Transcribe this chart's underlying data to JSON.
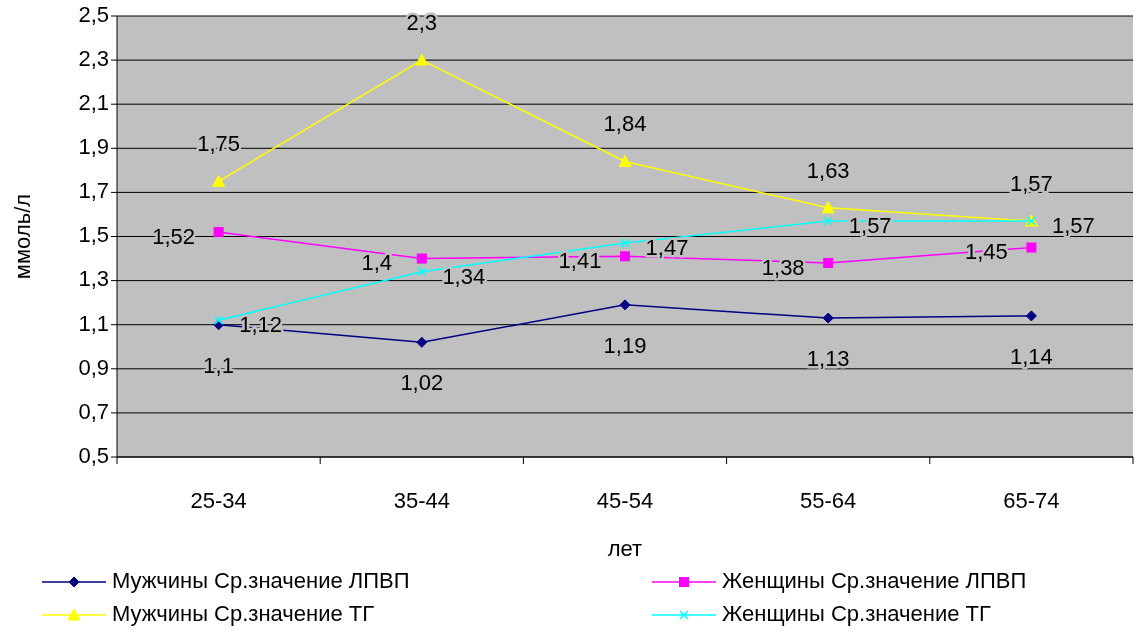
{
  "chart_data": {
    "type": "line",
    "xlabel": "лет",
    "ylabel": "ммоль/л",
    "categories": [
      "25-34",
      "35-44",
      "45-54",
      "55-64",
      "65-74"
    ],
    "ylim": [
      0.5,
      2.5
    ],
    "yticks": [
      {
        "value": 0.5,
        "label": "0,5"
      },
      {
        "value": 0.7,
        "label": "0,7"
      },
      {
        "value": 0.9,
        "label": "0,9"
      },
      {
        "value": 1.1,
        "label": "1,1"
      },
      {
        "value": 1.3,
        "label": "1,3"
      },
      {
        "value": 1.5,
        "label": "1,5"
      },
      {
        "value": 1.7,
        "label": "1,7"
      },
      {
        "value": 1.9,
        "label": "1,9"
      },
      {
        "value": 2.1,
        "label": "2,1"
      },
      {
        "value": 2.3,
        "label": "2,3"
      },
      {
        "value": 2.5,
        "label": "2,5"
      }
    ],
    "grid": "y",
    "legend": "bottom",
    "series": [
      {
        "name": "Мужчины Ср.значение ЛПВП",
        "color": "#000080",
        "marker": "diamond",
        "values": [
          1.1,
          1.02,
          1.19,
          1.13,
          1.14
        ],
        "value_labels": [
          "1,1",
          "1,02",
          "1,19",
          "1,13",
          "1,14"
        ]
      },
      {
        "name": "Женщины Ср.значение ЛПВП",
        "color": "#ff00ff",
        "marker": "square",
        "values": [
          1.52,
          1.4,
          1.41,
          1.38,
          1.45
        ],
        "value_labels": [
          "1,52",
          "1,4",
          "1,41",
          "1,38",
          "1,45"
        ]
      },
      {
        "name": "Мужчины Ср.значение ТГ",
        "color": "#ffff00",
        "marker": "triangle",
        "values": [
          1.75,
          2.3,
          1.84,
          1.63,
          1.57
        ],
        "value_labels": [
          "1,75",
          "2,3",
          "1,84",
          "1,63",
          "1,57"
        ]
      },
      {
        "name": "Женщины Ср.значение ТГ",
        "color": "#00ffff",
        "marker": "cross",
        "values": [
          1.12,
          1.34,
          1.47,
          1.57,
          1.57
        ],
        "value_labels": [
          "1,12",
          "1,34",
          "1,47",
          "1,57",
          "1,57"
        ]
      }
    ]
  }
}
